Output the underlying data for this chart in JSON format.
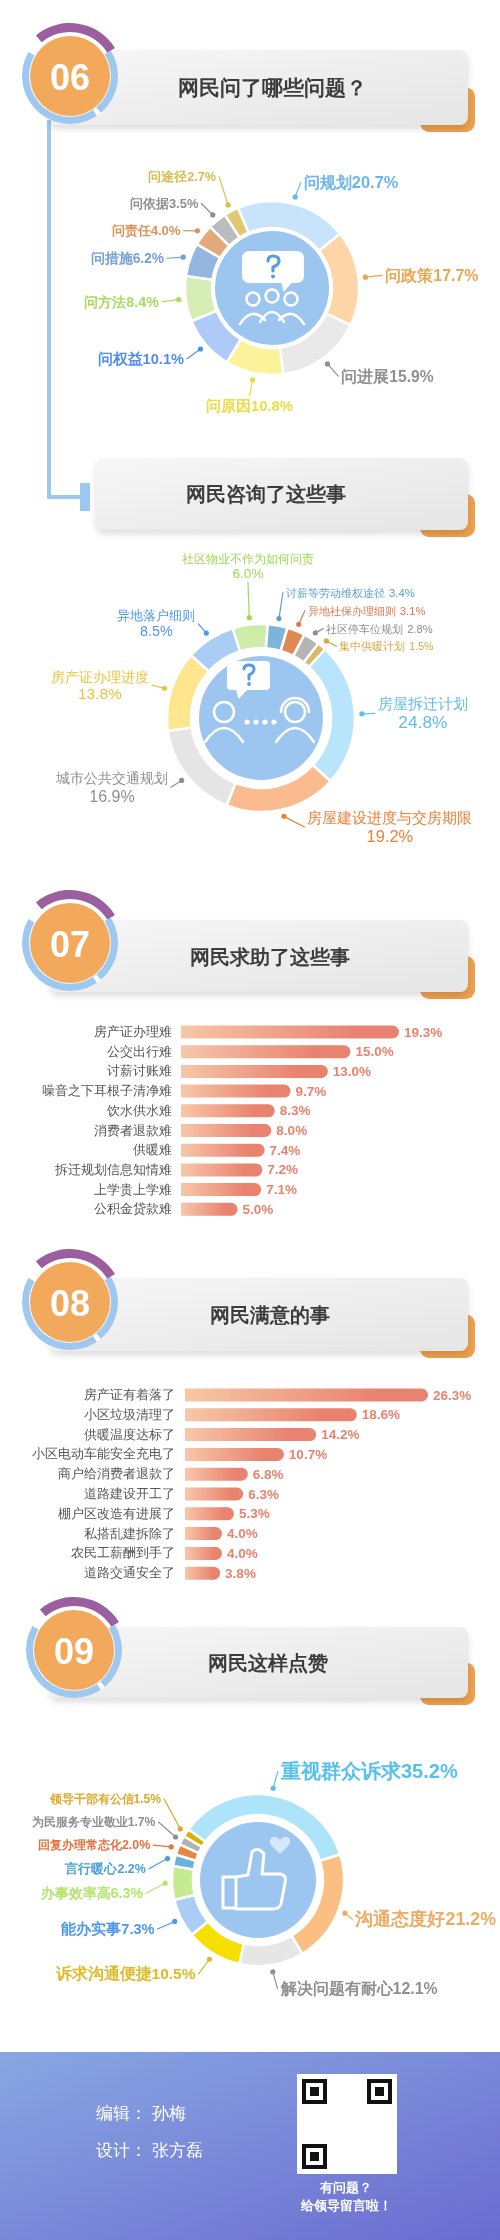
{
  "chart_data": [
    {
      "type": "donut",
      "title": "网民问了哪些问题？",
      "annotations": [
        "06"
      ],
      "categories": [
        "问规划",
        "问政策",
        "问进展",
        "问原因",
        "问权益",
        "问方法",
        "问措施",
        "问责任",
        "问依据",
        "问途径"
      ],
      "values": [
        20.7,
        17.7,
        15.9,
        10.8,
        10.1,
        8.4,
        6.2,
        4.0,
        3.5,
        2.7
      ],
      "value_labels": [
        "20.7%",
        "17.7%",
        "15.9%",
        "10.8%",
        "10.1%",
        "8.4%",
        "6.2%",
        "4.0%",
        "3.5%",
        "2.7%"
      ],
      "colors": [
        "#c7e4fb",
        "#fdd5a6",
        "#e9e9e9",
        "#fbf39b",
        "#aecaf6",
        "#d6eeb6",
        "#94b6de",
        "#e3a97a",
        "#bcbcbc",
        "#e1c873"
      ]
    },
    {
      "type": "donut",
      "title": "网民咨询了这些事",
      "categories": [
        "房屋拆迁计划",
        "房屋建设进度与交房期限",
        "城市公共交通规划",
        "房产证办理进度",
        "异地落户细则",
        "社区物业不作为如何问责",
        "讨薪等劳动维权途径",
        "异地社保办理细则",
        "社区停车位规划",
        "集中供暖计划"
      ],
      "values": [
        24.8,
        19.2,
        16.9,
        13.8,
        8.5,
        6.0,
        3.4,
        3.1,
        2.8,
        1.5
      ],
      "value_labels": [
        "24.8%",
        "19.2%",
        "16.9%",
        "13.8%",
        "8.5%",
        "6.0%",
        "3.4%",
        "3.1%",
        "2.8%",
        "1.5%"
      ],
      "colors": [
        "#b9e5fc",
        "#fcbb8e",
        "#e5e5e5",
        "#fde68e",
        "#a9cdf5",
        "#cdeba9",
        "#7cb4da",
        "#e08a52",
        "#b5b5b5",
        "#d9b961"
      ]
    },
    {
      "type": "bar",
      "orientation": "horizontal",
      "title": "网民求助了这些事",
      "annotations": [
        "07"
      ],
      "categories": [
        "房产证办理难",
        "公交出行难",
        "讨薪讨账难",
        "噪音之下耳根子清净难",
        "饮水供水难",
        "消费者退款难",
        "供暖难",
        "拆迁规划信息知情难",
        "上学贵上学难",
        "公积金贷款难"
      ],
      "values": [
        19.3,
        15.0,
        13.0,
        9.7,
        8.3,
        8.0,
        7.4,
        7.2,
        7.1,
        5.0
      ],
      "value_labels": [
        "19.3%",
        "15.0%",
        "13.0%",
        "9.7%",
        "8.3%",
        "8.0%",
        "7.4%",
        "7.2%",
        "7.1%",
        "5.0%"
      ],
      "color": "#e9826f"
    },
    {
      "type": "bar",
      "orientation": "horizontal",
      "title": "网民满意的事",
      "annotations": [
        "08"
      ],
      "categories": [
        "房产证有着落了",
        "小区垃圾清理了",
        "供暖温度达标了",
        "小区电动车能安全充电了",
        "商户给消费者退款了",
        "道路建设开工了",
        "棚户区改造有进展了",
        "私搭乱建拆除了",
        "农民工薪酬到手了",
        "道路交通安全了"
      ],
      "values": [
        26.3,
        18.6,
        14.2,
        10.7,
        6.8,
        6.3,
        5.3,
        4.0,
        4.0,
        3.8
      ],
      "value_labels": [
        "26.3%",
        "18.6%",
        "14.2%",
        "10.7%",
        "6.8%",
        "6.3%",
        "5.3%",
        "4.0%",
        "4.0%",
        "3.8%"
      ],
      "color": "#e9826f"
    },
    {
      "type": "donut",
      "title": "网民这样点赞",
      "annotations": [
        "09"
      ],
      "categories": [
        "重视群众诉求",
        "沟通态度好",
        "解决问题有耐心",
        "诉求沟通便捷",
        "能办实事",
        "办事效率高",
        "言行暖心",
        "回复办理常态化",
        "为民服务专业敬业",
        "领导干部有公信"
      ],
      "values": [
        35.2,
        21.2,
        12.1,
        10.5,
        7.3,
        6.3,
        2.2,
        2.0,
        1.7,
        1.5
      ],
      "value_labels": [
        "35.2%",
        "21.2%",
        "12.1%",
        "10.5%",
        "7.3%",
        "6.3%",
        "2.2%",
        "2.0%",
        "1.7%",
        "1.5%"
      ],
      "colors": [
        "#aee4fa",
        "#fbbf82",
        "#e6e6e6",
        "#f6e004",
        "#a9cdf5",
        "#c5eb92",
        "#6cb1dd",
        "#e8853e",
        "#b2b2b2",
        "#d9b204"
      ]
    },
    {
      "type": "other",
      "annotations": [
        "编辑： 孙梅",
        "设计： 张方磊",
        "有问题？",
        "给领导留言啦！"
      ]
    }
  ]
}
